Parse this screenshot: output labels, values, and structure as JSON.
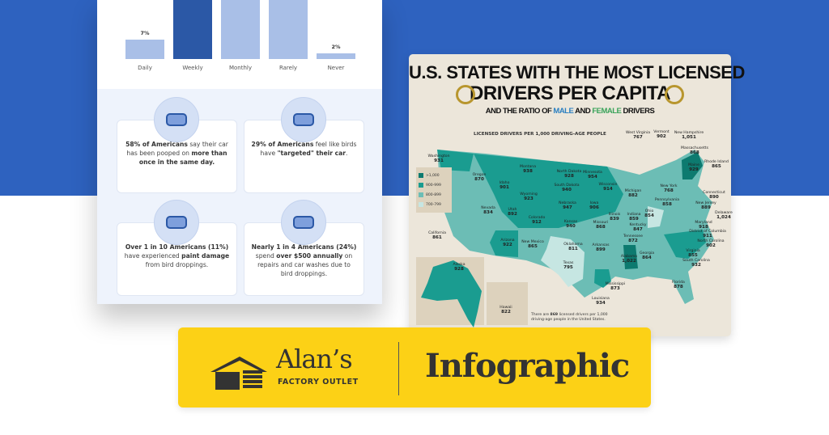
{
  "chart_data": {
    "type": "bar",
    "categories": [
      "Daily",
      "Weekly",
      "Monthly",
      "Rarely",
      "Never"
    ],
    "value_labels": [
      "7%",
      null,
      null,
      null,
      "2%"
    ],
    "values": [
      7,
      null,
      null,
      null,
      2
    ],
    "highlight": "Weekly",
    "colors": {
      "bar": "#a9bfe7",
      "highlight": "#2b58a6"
    }
  },
  "stats": [
    {
      "icon": "bird-sunglasses-icon",
      "bold1": "58% of Americans",
      "t1": " say their car has been pooped on ",
      "bold2": "more than once in the same day.",
      "t2": ""
    },
    {
      "icon": "car-target-icon",
      "bold1": "29% of Americans",
      "t1": " feel like birds have ",
      "bold2": "\"targeted\" their car",
      "t2": "."
    },
    {
      "icon": "car-front-icon",
      "bold1": "Over 1 in 10 Americans (11%)",
      "t1": " have experienced ",
      "bold2": "paint damage",
      "t2": " from bird droppings."
    },
    {
      "icon": "money-coins-icon",
      "bold1": "Nearly 1 in 4 Americans (24%)",
      "t1": " spend ",
      "bold2": "over $500 annually",
      "t2": " on repairs and car washes due to bird droppings."
    }
  ],
  "map": {
    "title1": "U.S. STATES WITH THE MOST LICENSED",
    "title2": "DRIVERS PER CAPITA",
    "subtitle_a": "AND THE RATIO OF ",
    "subtitle_male": "MALE",
    "subtitle_b": " AND ",
    "subtitle_female": "FEMALE",
    "subtitle_c": " DRIVERS",
    "colors": {
      "male": "#2a7fc1",
      "female": "#3aa35a"
    },
    "chart_title": "LICENSED DRIVERS PER 1,000 DRIVING-AGE PEOPLE",
    "legend": [
      {
        "label": ">1,000",
        "color": "#0d7a6f"
      },
      {
        "label": "900-999",
        "color": "#1a9c90"
      },
      {
        "label": "800-899",
        "color": "#6cbdb5"
      },
      {
        "label": "700-799",
        "color": "#c6e6e2"
      }
    ],
    "note_a": "There are ",
    "note_num": "869",
    "note_b": " licensed drivers per 1,000 driving-age people in the United States.",
    "states": [
      [
        "Washington",
        "931"
      ],
      [
        "Oregon",
        "870"
      ],
      [
        "Idaho",
        "901"
      ],
      [
        "Montana",
        "938"
      ],
      [
        "Wyoming",
        "923"
      ],
      [
        "Nevada",
        "834"
      ],
      [
        "Utah",
        "892"
      ],
      [
        "Colorado",
        "912"
      ],
      [
        "California",
        "861"
      ],
      [
        "Arizona",
        "922"
      ],
      [
        "New Mexico",
        "865"
      ],
      [
        "North Dakota",
        "928"
      ],
      [
        "South Dakota",
        "940"
      ],
      [
        "Nebraska",
        "947"
      ],
      [
        "Kansas",
        "940"
      ],
      [
        "Oklahoma",
        "811"
      ],
      [
        "Texas",
        "795"
      ],
      [
        "Minnesota",
        "954"
      ],
      [
        "Wisconsin",
        "914"
      ],
      [
        "Iowa",
        "906"
      ],
      [
        "Missouri",
        "868"
      ],
      [
        "Arkansas",
        "899"
      ],
      [
        "Illinois",
        "839"
      ],
      [
        "Indiana",
        "859"
      ],
      [
        "Michigan",
        "882"
      ],
      [
        "Ohio",
        "854"
      ],
      [
        "Kentucky",
        "847"
      ],
      [
        "Tennessee",
        "872"
      ],
      [
        "Alabama",
        "1,022"
      ],
      [
        "Georgia",
        "864"
      ],
      [
        "Mississippi",
        "873"
      ],
      [
        "Louisiana",
        "934"
      ],
      [
        "Florida",
        "878"
      ],
      [
        "Pennsylvania",
        "858"
      ],
      [
        "New York",
        "768"
      ],
      [
        "West Virginia",
        "767"
      ],
      [
        "Vermont",
        "902"
      ],
      [
        "New Hampshire",
        "1,051"
      ],
      [
        "Massachusetts",
        "868"
      ],
      [
        "Maine",
        "929"
      ],
      [
        "Rhode Island",
        "865"
      ],
      [
        "Connecticut",
        "890"
      ],
      [
        "New Jersey",
        "889"
      ],
      [
        "Delaware",
        "1,024"
      ],
      [
        "Maryland",
        "918"
      ],
      [
        "District of Columbia",
        "911"
      ],
      [
        "North Carolina",
        "902"
      ],
      [
        "Virginia",
        "855"
      ],
      [
        "South Carolina",
        "932"
      ],
      [
        "Alaska",
        "928"
      ],
      [
        "Hawaii",
        "822"
      ]
    ]
  },
  "banner": {
    "logo_name": "Alan’s",
    "logo_sub": "FACTORY OUTLET",
    "label": "Infographic",
    "color": "#fcd116"
  }
}
